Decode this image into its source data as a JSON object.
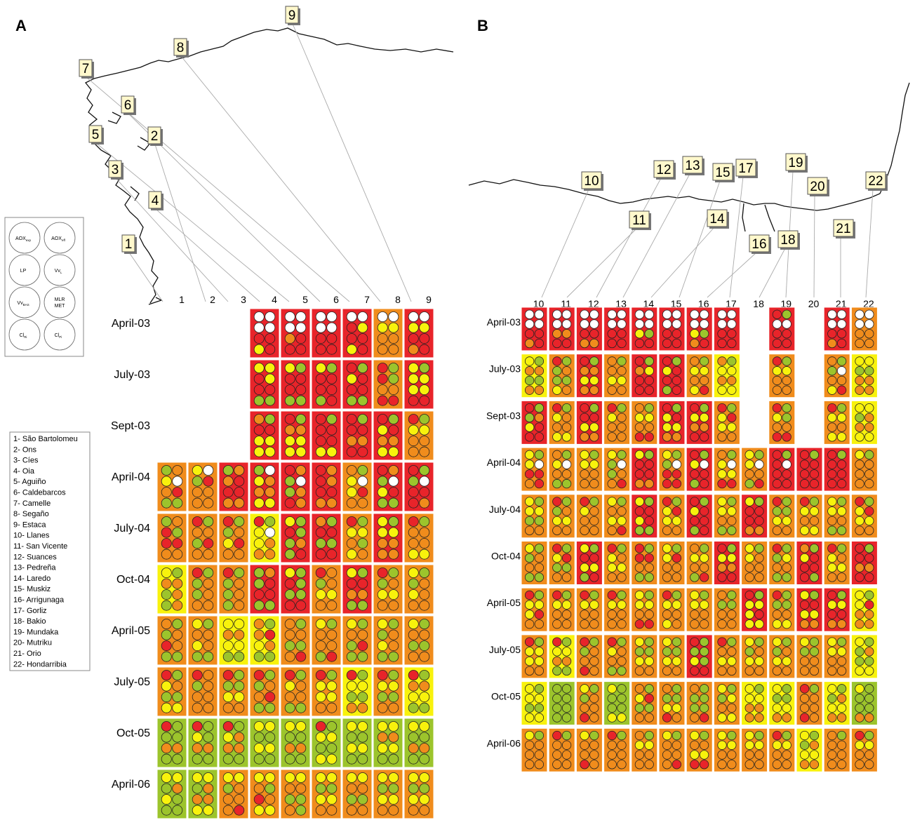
{
  "panels": {
    "a": "A",
    "b": "B"
  },
  "key_labels": [
    [
      "AOX",
      "exp"
    ],
    [
      "AOX",
      "eff"
    ],
    [
      "LP",
      ""
    ],
    [
      "Vv",
      "L"
    ],
    [
      "Vv",
      "BAS"
    ],
    [
      "MLR",
      ""
    ],
    [
      "Cl",
      "Ri"
    ],
    [
      "Cl",
      "Pi"
    ]
  ],
  "key_labels_extra": {
    "met": "MET"
  },
  "site_list": [
    "1- São Bartolomeu",
    "2- Ons",
    "3- Cíes",
    "4- Oia",
    "5- Aguiño",
    "6- Caldebarcos",
    "7- Camelle",
    "8- Segaño",
    "9- Estaca",
    "10- Llanes",
    "11- San Vicente",
    "12- Suances",
    "13- Pedreña",
    "14- Laredo",
    "15- Muskiz",
    "16- Arrigunaga",
    "17- Gorliz",
    "18- Bakio",
    "19- Mundaka",
    "20- Mutriku",
    "21- Orio",
    "22- Hondarribia"
  ],
  "colors": {
    "R": "#e8242a",
    "O": "#f08c1c",
    "Y": "#f8f20c",
    "G": "#9cc42c",
    "W": "#ffffff",
    "site_box": "#fff8cc"
  },
  "panel_a": {
    "sites": [
      "1",
      "2",
      "3",
      "4",
      "5",
      "6",
      "7",
      "8",
      "9"
    ],
    "dates": [
      "April-03",
      "July-03",
      "Sept-03",
      "April-04",
      "July-04",
      "Oct-04",
      "April-05",
      "July-05",
      "Oct-05",
      "April-06"
    ],
    "map_labels": [
      "1",
      "2",
      "3",
      "4",
      "5",
      "6",
      "7",
      "8",
      "9"
    ],
    "grid": [
      [
        "",
        "",
        "",
        "R:WWWWRRYR",
        "R:WWWWORRR",
        "R:WWWWRRRR",
        "R:WWRYRRYR",
        "O:WWYYOOOO",
        "R:WWYYRROR"
      ],
      [
        "",
        "",
        "",
        "R:YYRYRRGG",
        "R:YGRRRRGG",
        "R:YGRRRRGR",
        "R:RGYRRRGG",
        "O:RGRGOORR",
        "R:YGYYYYRR"
      ],
      [
        "",
        "",
        "",
        "R:OGRRYYYY",
        "R:RGOOYYYY",
        "R:RGRRRRYY",
        "R:RGRROORR",
        "R:RGYROOYY",
        "O:RGYYOOOO"
      ],
      [
        "O:GOYWORGG",
        "O:YWGROOOO",
        "R:GOORRROO",
        "R:GWYOOOYY",
        "R:ROGWGORO",
        "R:RORORROO",
        "O:OGYWYROO",
        "R:ROGWYRGG",
        "R:RGGWRRRO"
      ],
      [
        "O:GORGRROO",
        "O:RGOOGROO",
        "O:RGGOYROO",
        "Y:RGYWYOOO",
        "R:YGRGGOGR",
        "R:OGRRGGRR",
        "O:RGYYOGYO",
        "R:YGYYOOOO",
        "O:RGOOOOYY"
      ],
      [
        "Y:YGOOGOGO",
        "O:RGGOGOOO",
        "O:RGGOGOGO",
        "R:GOGRRRGG",
        "R:YGRGGGRR",
        "O:ROGOYYOO",
        "R:YGRROOGG",
        "O:RGGOYYOO",
        "O:YGGOYOOO"
      ],
      [
        "O:OGGOROGG",
        "O:YGOOYOGG",
        "Y:YYOOYYGG",
        "Y:OGORYOGG",
        "O:OGOOGGOR",
        "O:YGOOOOGR",
        "O:YGOOGRGG",
        "O:YGGOYOGG",
        "O:YGOOGGOO"
      ],
      [
        "O:RGYOGGYY",
        "O:ROGOOOOO",
        "O:RGGGYYOO",
        "O:RGGOORGG",
        "O:RGYOOOGG",
        "O:RGYYYYOO",
        "Y:RGYYGGOO",
        "O:RGYYGGOO",
        "Y:RGOOYYGG"
      ],
      [
        "G:RGGGOOGG",
        "G:RGYGOOGG",
        "G:RGYOOOGG",
        "G:YYGGYYGG",
        "G:YYGGOOGG",
        "G:RGYYGGYY",
        "G:YYGGYYGG",
        "G:YYOOYYGG",
        "G:YYGGOOGG"
      ],
      [
        "G:YYGOYGGG",
        "G:YYGOOOYY",
        "O:YYGOOOOR",
        "O:YYOGROYY",
        "O:YYOOGGOG",
        "O:YYGGYYOO",
        "O:YYOOGGOO",
        "O:YYGGYYOO",
        "O:YYGGYYOO"
      ]
    ]
  },
  "panel_b": {
    "sites": [
      "10",
      "11",
      "12",
      "13",
      "14",
      "15",
      "16",
      "17",
      "18",
      "19",
      "20",
      "21",
      "22"
    ],
    "dates": [
      "April-03",
      "July-03",
      "Sept-03",
      "April-04",
      "July-04",
      "Oct-04",
      "April-05",
      "July-05",
      "Oct-05",
      "April-06"
    ],
    "map_labels": [
      "10",
      "11",
      "12",
      "13",
      "14",
      "15",
      "16",
      "17",
      "18",
      "19",
      "20",
      "21",
      "22"
    ],
    "grid": [
      [
        "R:WWWWRROR",
        "R:WWWWOORR",
        "R:WWWWRROO",
        "R:WWWWRRRR",
        "R:WWWWYGRR",
        "R:WWWWRRRR",
        "R:WWWWYGOR",
        "R:WWWWRRRR",
        "",
        "R:RGWWRRRR",
        "",
        "R:WWWWRROR",
        "O:WWWWOOOO"
      ],
      [
        "Y:YGOOGGOO",
        "O:RGGOGGYO",
        "R:RGOOYYOO",
        "O:OGOOYYOO",
        "R:RGOYRRRR",
        "R:RGYRRRGR",
        "O:OGYYOOYR",
        "Y:OGYYOOYY",
        "",
        "O:RGYYOOOO",
        "",
        "O:OGGWOOYR",
        "Y:YYGGOOOO"
      ],
      [
        "R:RGGOYRRR",
        "O:RGYOOOYY",
        "R:RGRRYYOO",
        "O:RGYOOOOO",
        "O:OGYYOORR",
        "R:RGYRYYOO",
        "R:RGYYOORR",
        "O:RGYRYYOO",
        "",
        "O:RGYGOORR",
        "",
        "O:RGYYOOYY",
        "Y:YYGOOOYY"
      ],
      [
        "O:YGYWRROR",
        "O:OGYWOOGG",
        "O:YGYYOOOO",
        "O:YGGWGOOR",
        "R:YGRRRROO",
        "O:YGGWRRRR",
        "R:RGYWRRGR",
        "O:OGYWYYRR",
        "O:YGYWOOGR",
        "R:RGRWRRRR",
        "R:RGRRRRRR",
        "R:RGRRRRRR",
        "O:YGOOOOOO"
      ],
      [
        "O:YGYYGGOO",
        "O:RGGOYYOO",
        "O:RGYOOOOO",
        "O:YGOOYYOR",
        "R:YGRRYRGG",
        "O:RGYRYYOO",
        "R:RGYRRRGR",
        "O:YGYYOOGG",
        "R:YGRRRROO",
        "O:RGGGYYOO",
        "O:RGYYOOYY",
        "O:YGYYOOGG",
        "O:RGYRYYOO"
      ],
      [
        "O:YGGOOOGG",
        "O:RGYRGGOO",
        "R:YGRRYYGR",
        "O:RGYOYYOO",
        "O:RGRROOGG",
        "O:YGYROOOO",
        "O:OGYYOOGR",
        "R:RGYYOORR",
        "O:YGYOOOOO",
        "O:RGGYOOGG",
        "R:OGYRRRRG",
        "O:RGYOYYOO",
        "R:RGRROORR"
      ],
      [
        "O:RGYYYROO",
        "O:RGYYOOOO",
        "O:RGYYOOOO",
        "O:RGYYOOOO",
        "O:YGYYOORR",
        "O:RGYYOOYO",
        "O:YGYYOOOO",
        "O:OGGGOOOO",
        "R:RGYYYRYY",
        "O:RGGGOOYY",
        "R:YGRRYYOO",
        "R:RGYYRROO",
        "Y:YGYROOOO"
      ],
      [
        "O:RGYYYYOO",
        "Y:RGYYOOGG",
        "O:RGGOOORO",
        "O:RGYOOOGG",
        "O:YGGGYYOO",
        "O:YGGGYYOO",
        "R:RGGGYGRR",
        "O:RGOOYYOO",
        "O:YGGOYYOO",
        "O:YGGOYYOO",
        "O:YGGGOOOO",
        "O:YGYYOOOO",
        "Y:YGGOGGYY"
      ],
      [
        "Y:YGYYGGYY",
        "G:GGGGGGGG",
        "O:YGGOOORO",
        "G:YGGGGGYY",
        "O:OGYRGGOO",
        "O:OGGGYYRO",
        "O:OGGGGGOR",
        "O:YGGYOOYY",
        "Y:YGYYOOOO",
        "Y:YGGGYYOO",
        "O:RGOOOORO",
        "Y:YGGOYYOO",
        "G:YGGGGGOO"
      ],
      [
        "O:YGOOOOOO",
        "O:RGOOOOOO",
        "O:YGOOOORO",
        "O:RGOOOOOO",
        "O:OGYYOOOO",
        "O:YGOOOOOR",
        "O:YGOOYYRR",
        "O:YGYYOOOO",
        "O:YGYYOOOO",
        "O:RGYYOOOO",
        "Y:YGGOYYOO",
        "O:OGOOOOOO",
        "O:RGYYOOOO"
      ]
    ]
  }
}
